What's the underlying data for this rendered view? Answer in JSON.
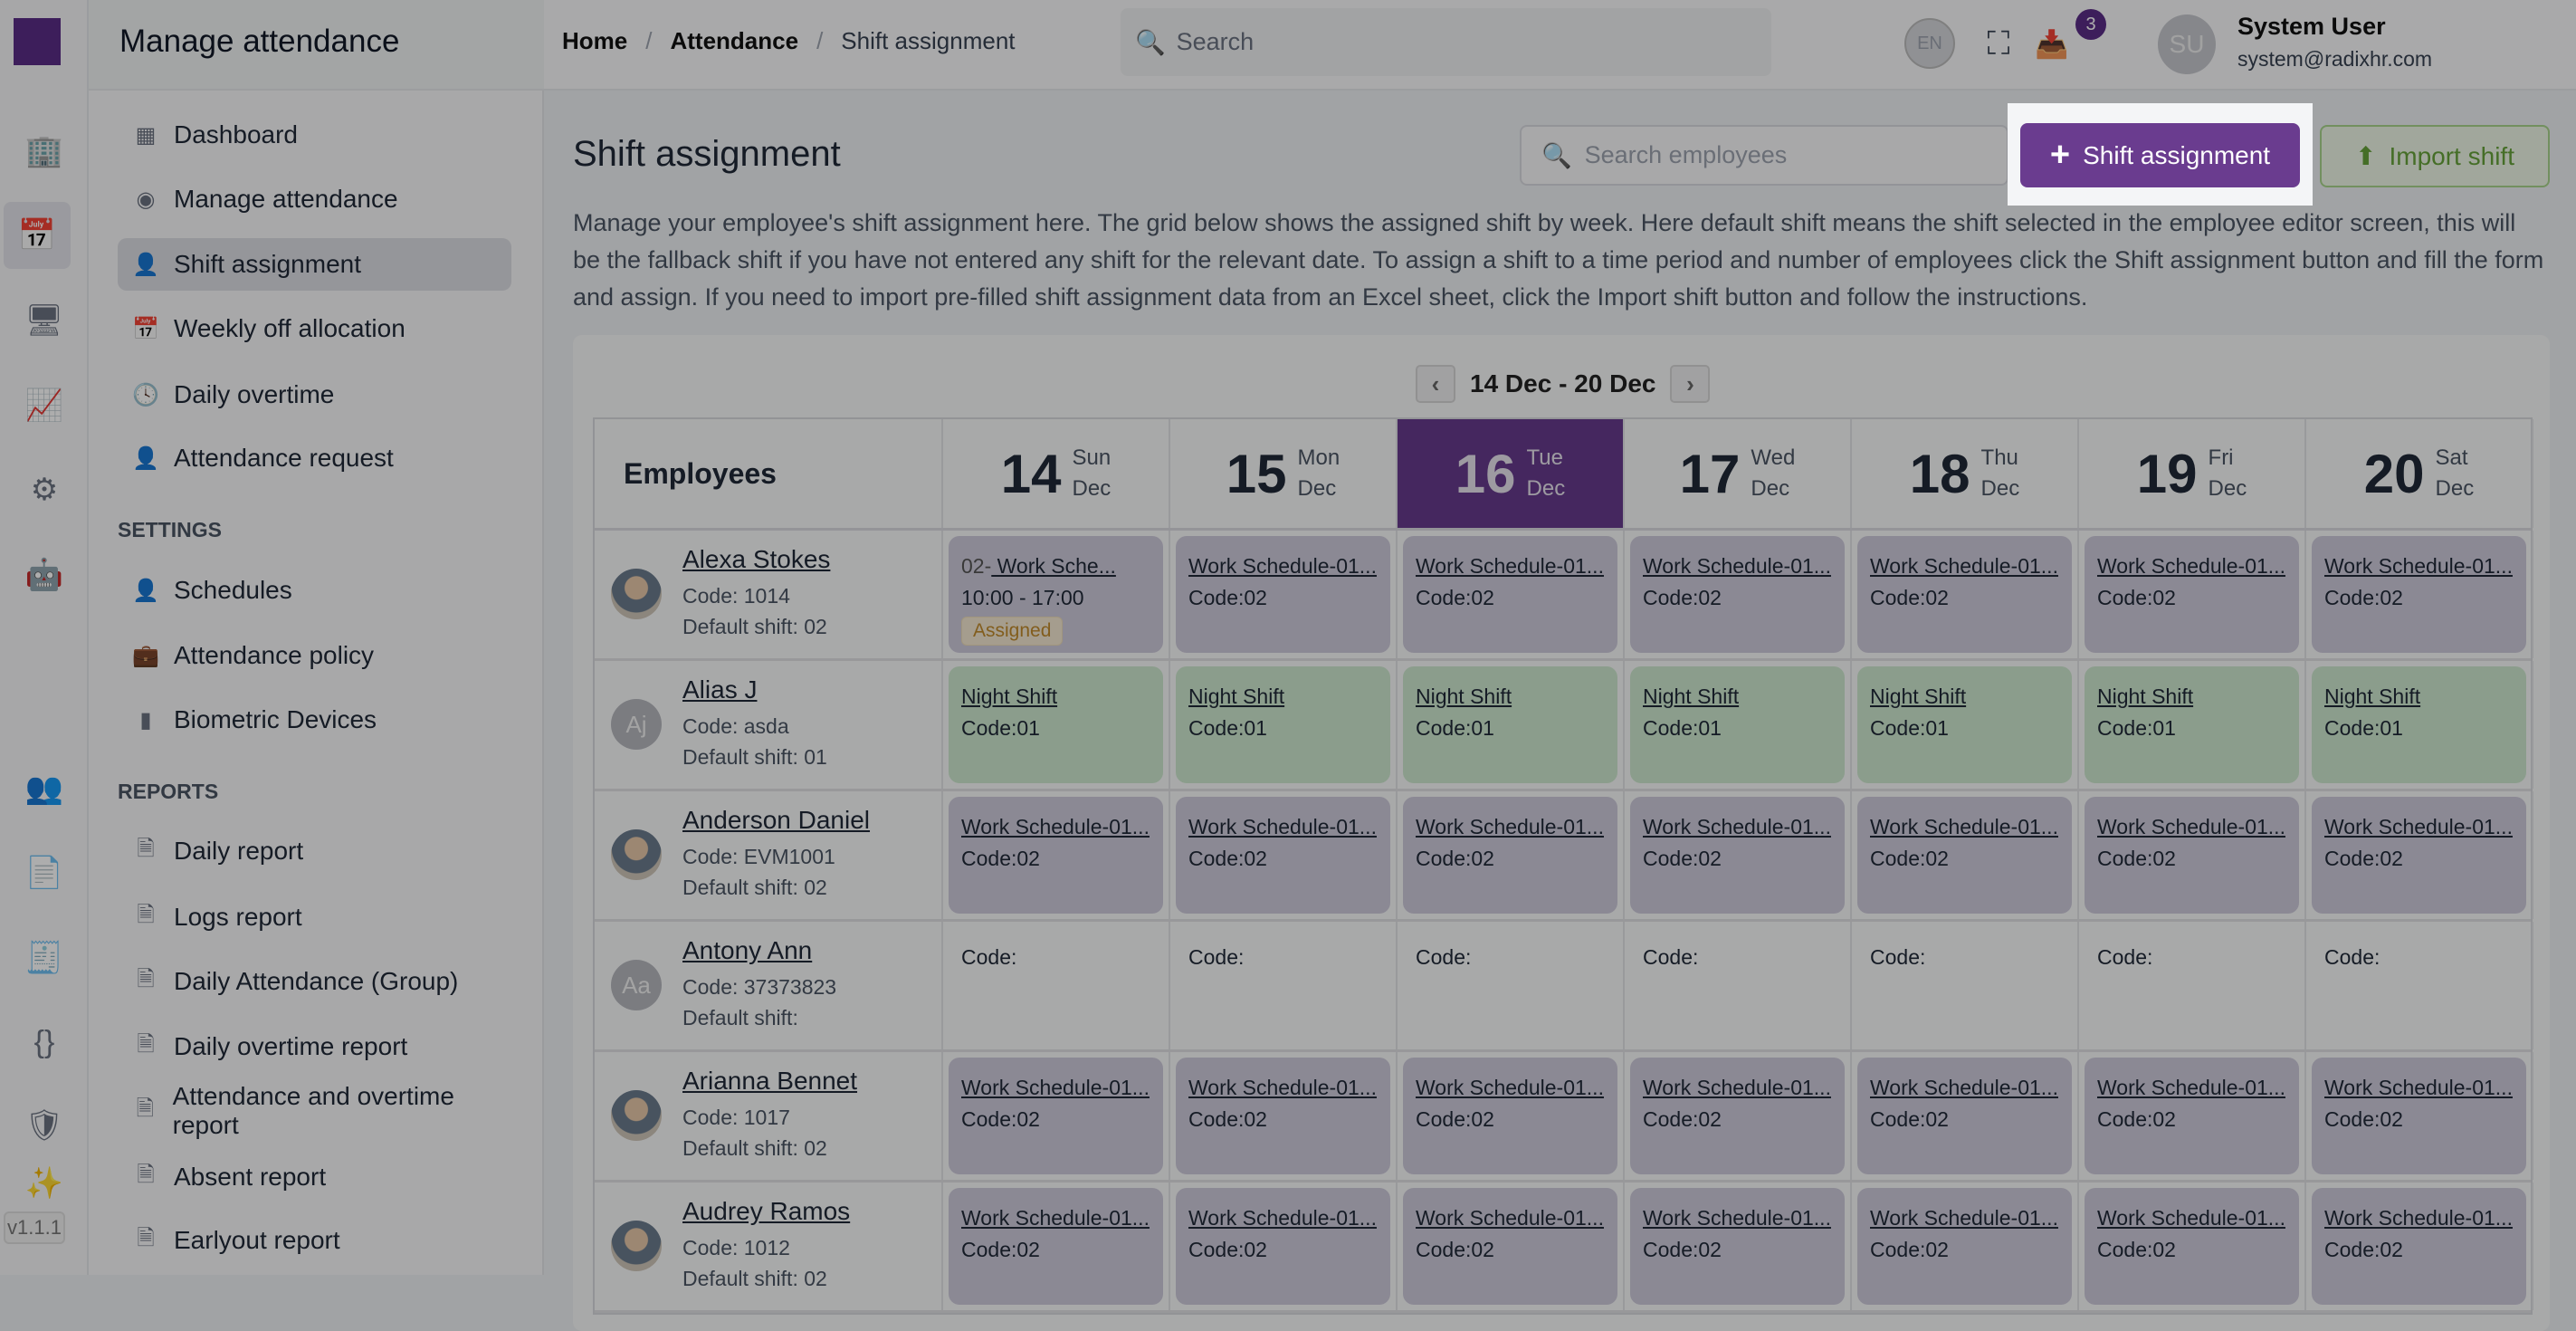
{
  "app": {
    "version": "v1.1.1",
    "section_title": "Manage attendance"
  },
  "sidebar": {
    "items": [
      {
        "label": "Dashboard",
        "icon": "dashboard-icon"
      },
      {
        "label": "Manage attendance",
        "icon": "fingerprint-icon"
      },
      {
        "label": "Shift assignment",
        "icon": "user-check-icon",
        "active": true
      },
      {
        "label": "Weekly off allocation",
        "icon": "calendar-icon"
      },
      {
        "label": "Daily overtime",
        "icon": "clock-icon"
      },
      {
        "label": "Attendance request",
        "icon": "user-plus-icon"
      }
    ],
    "settings_label": "SETTINGS",
    "settings": [
      {
        "label": "Schedules",
        "icon": "user-clock-icon"
      },
      {
        "label": "Attendance policy",
        "icon": "briefcase-icon"
      },
      {
        "label": "Biometric Devices",
        "icon": "device-icon"
      }
    ],
    "reports_label": "REPORTS",
    "reports": [
      {
        "label": "Daily report"
      },
      {
        "label": "Logs report"
      },
      {
        "label": "Daily Attendance (Group)"
      },
      {
        "label": "Daily overtime report"
      },
      {
        "label": "Attendance and overtime report"
      },
      {
        "label": "Absent report"
      },
      {
        "label": "Earlyout report"
      }
    ]
  },
  "header": {
    "breadcrumb": [
      "Home",
      "Attendance",
      "Shift assignment"
    ],
    "search_placeholder": "Search",
    "language": "EN",
    "notification_count": "3",
    "user": {
      "initials": "SU",
      "name": "System User",
      "email": "system@radixhr.com"
    }
  },
  "page": {
    "title": "Shift assignment",
    "search_placeholder": "Search employees",
    "add_button": "Shift assignment",
    "import_button": "Import shift",
    "description": "Manage your employee's shift assignment here. The grid below shows the assigned shift by week. Here default shift means the shift selected in the employee editor screen, this will be the fallback shift if you have not entered any shift for the relevant date. To assign a shift to a time period and number of employees click the Shift assignment button and fill the form and assign. If you need to import pre-filled shift assignment data from an Excel sheet, click the Import shift button and follow the instructions."
  },
  "grid": {
    "week_label": "14 Dec - 20 Dec",
    "employees_header": "Employees",
    "days": [
      {
        "num": "14",
        "dow": "Sun",
        "mon": "Dec"
      },
      {
        "num": "15",
        "dow": "Mon",
        "mon": "Dec"
      },
      {
        "num": "16",
        "dow": "Tue",
        "mon": "Dec",
        "today": true
      },
      {
        "num": "17",
        "dow": "Wed",
        "mon": "Dec"
      },
      {
        "num": "18",
        "dow": "Thu",
        "mon": "Dec"
      },
      {
        "num": "19",
        "dow": "Fri",
        "mon": "Dec"
      },
      {
        "num": "20",
        "dow": "Sat",
        "mon": "Dec"
      }
    ],
    "rows": [
      {
        "name": "Alexa Stokes",
        "code": "Code: 1014",
        "default": "Default shift: 02",
        "avatar": "",
        "photo": true,
        "cells": [
          {
            "type": "work",
            "prefix": "02-",
            "shift": " Work Sche...",
            "time": "10:00 - 17:00",
            "badge": "Assigned"
          },
          {
            "type": "work",
            "shift": "Work Schedule-01...",
            "code": "Code:02"
          },
          {
            "type": "work",
            "shift": "Work Schedule-01...",
            "code": "Code:02"
          },
          {
            "type": "work",
            "shift": "Work Schedule-01...",
            "code": "Code:02"
          },
          {
            "type": "work",
            "shift": "Work Schedule-01...",
            "code": "Code:02"
          },
          {
            "type": "work",
            "shift": "Work Schedule-01...",
            "code": "Code:02"
          },
          {
            "type": "work",
            "shift": "Work Schedule-01...",
            "code": "Code:02"
          }
        ]
      },
      {
        "name": "Alias J",
        "code": "Code: asda",
        "default": "Default shift: 01",
        "avatar": "Aj",
        "cells": [
          {
            "type": "night",
            "shift": "Night Shift",
            "code": "Code:01"
          },
          {
            "type": "night",
            "shift": "Night Shift",
            "code": "Code:01"
          },
          {
            "type": "night",
            "shift": "Night Shift",
            "code": "Code:01"
          },
          {
            "type": "night",
            "shift": "Night Shift",
            "code": "Code:01"
          },
          {
            "type": "night",
            "shift": "Night Shift",
            "code": "Code:01"
          },
          {
            "type": "night",
            "shift": "Night Shift",
            "code": "Code:01"
          },
          {
            "type": "night",
            "shift": "Night Shift",
            "code": "Code:01"
          }
        ]
      },
      {
        "name": "Anderson Daniel",
        "code": "Code: EVM1001",
        "default": "Default shift: 02",
        "avatar": "",
        "photo": true,
        "cells": [
          {
            "type": "work",
            "shift": "Work Schedule-01...",
            "code": "Code:02"
          },
          {
            "type": "work",
            "shift": "Work Schedule-01...",
            "code": "Code:02"
          },
          {
            "type": "work",
            "shift": "Work Schedule-01...",
            "code": "Code:02"
          },
          {
            "type": "work",
            "shift": "Work Schedule-01...",
            "code": "Code:02"
          },
          {
            "type": "work",
            "shift": "Work Schedule-01...",
            "code": "Code:02"
          },
          {
            "type": "work",
            "shift": "Work Schedule-01...",
            "code": "Code:02"
          },
          {
            "type": "work",
            "shift": "Work Schedule-01...",
            "code": "Code:02"
          }
        ]
      },
      {
        "name": "Antony Ann",
        "code": "Code: 37373823",
        "default": "Default shift:",
        "avatar": "Aa",
        "cells": [
          {
            "type": "empty",
            "code": "Code:"
          },
          {
            "type": "empty",
            "code": "Code:"
          },
          {
            "type": "empty",
            "code": "Code:"
          },
          {
            "type": "empty",
            "code": "Code:"
          },
          {
            "type": "empty",
            "code": "Code:"
          },
          {
            "type": "empty",
            "code": "Code:"
          },
          {
            "type": "empty",
            "code": "Code:"
          }
        ]
      },
      {
        "name": "Arianna Bennet",
        "code": "Code: 1017",
        "default": "Default shift: 02",
        "avatar": "",
        "photo": true,
        "cells": [
          {
            "type": "work",
            "shift": "Work Schedule-01...",
            "code": "Code:02"
          },
          {
            "type": "work",
            "shift": "Work Schedule-01...",
            "code": "Code:02"
          },
          {
            "type": "work",
            "shift": "Work Schedule-01...",
            "code": "Code:02"
          },
          {
            "type": "work",
            "shift": "Work Schedule-01...",
            "code": "Code:02"
          },
          {
            "type": "work",
            "shift": "Work Schedule-01...",
            "code": "Code:02"
          },
          {
            "type": "work",
            "shift": "Work Schedule-01...",
            "code": "Code:02"
          },
          {
            "type": "work",
            "shift": "Work Schedule-01...",
            "code": "Code:02"
          }
        ]
      },
      {
        "name": "Audrey Ramos",
        "code": "Code: 1012",
        "default": "Default shift: 02",
        "avatar": "",
        "photo": true,
        "cells": [
          {
            "type": "work",
            "shift": "Work Schedule-01...",
            "code": "Code:02"
          },
          {
            "type": "work",
            "shift": "Work Schedule-01...",
            "code": "Code:02"
          },
          {
            "type": "work",
            "shift": "Work Schedule-01...",
            "code": "Code:02"
          },
          {
            "type": "work",
            "shift": "Work Schedule-01...",
            "code": "Code:02"
          },
          {
            "type": "work",
            "shift": "Work Schedule-01...",
            "code": "Code:02"
          },
          {
            "type": "work",
            "shift": "Work Schedule-01...",
            "code": "Code:02"
          },
          {
            "type": "work",
            "shift": "Work Schedule-01...",
            "code": "Code:02"
          }
        ]
      }
    ]
  },
  "colors": {
    "brand": "#6a3c8f",
    "work_shift": "#cdcadb",
    "night_shift": "#cde8ce",
    "import": "#66a23a"
  }
}
